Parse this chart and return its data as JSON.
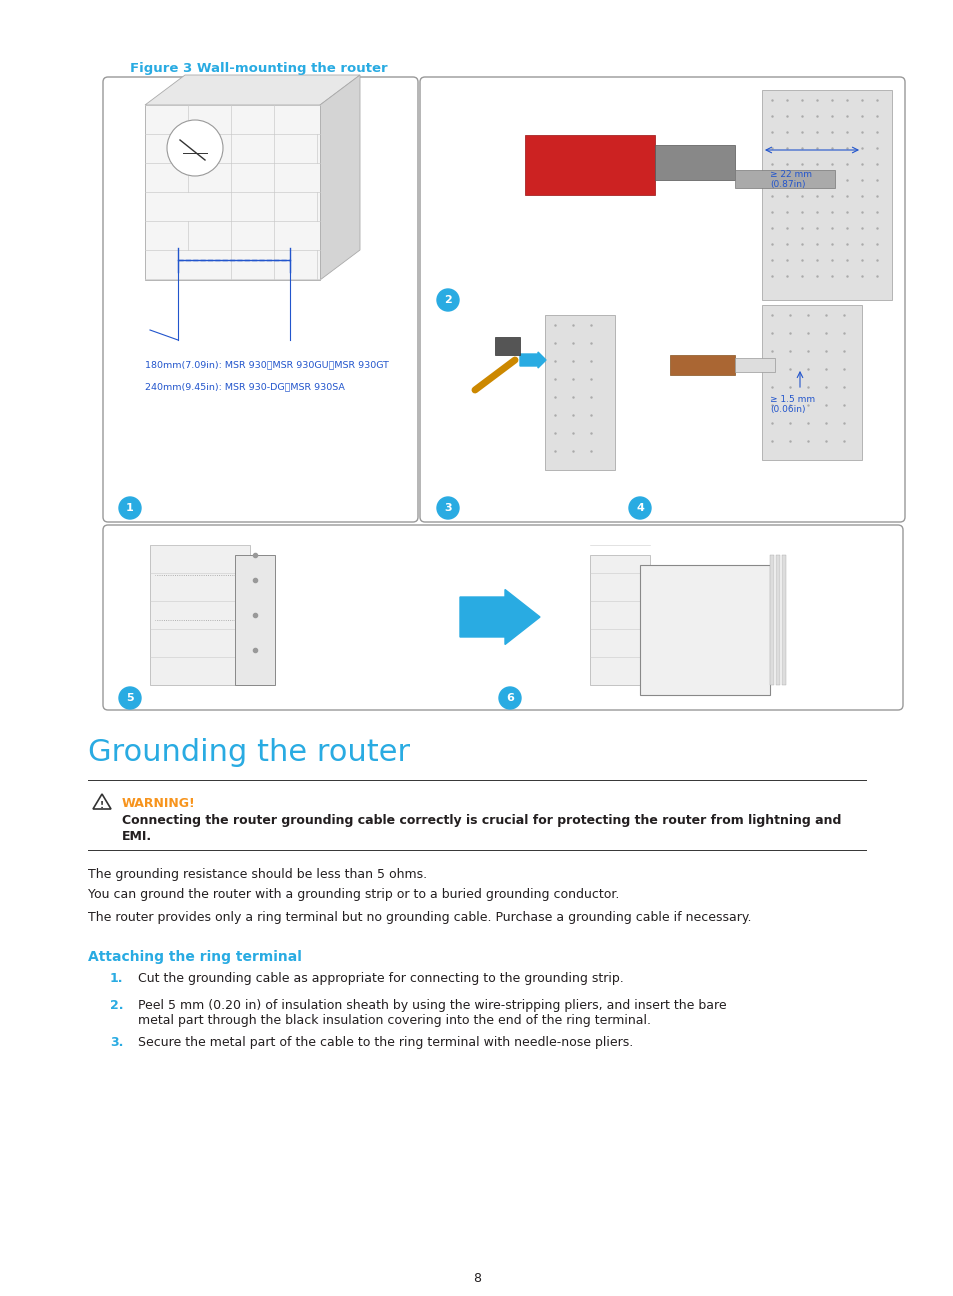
{
  "figure_caption": "Figure 3 Wall-mounting the router",
  "figure_caption_color": "#29ABE2",
  "section_title": "Grounding the router",
  "section_title_color": "#29ABE2",
  "warning_label": "WARNING!",
  "warning_label_color": "#F7941D",
  "warning_text_line1": "Connecting the router grounding cable correctly is crucial for protecting the router from lightning and",
  "warning_text_line2": "EMI.",
  "body_paragraphs": [
    "The grounding resistance should be less than 5 ohms.",
    "You can ground the router with a grounding strip or to a buried grounding conductor.",
    "The router provides only a ring terminal but no grounding cable. Purchase a grounding cable if necessary."
  ],
  "subsection_title": "Attaching the ring terminal",
  "subsection_title_color": "#29ABE2",
  "list_items": [
    [
      "Cut the grounding cable as appropriate for connecting to the grounding strip."
    ],
    [
      "Peel 5 mm (0.20 in) of insulation sheath by using the wire-stripping pliers, and insert the bare",
      "metal part through the black insulation covering into the end of the ring terminal."
    ],
    [
      "Secure the metal part of the cable to the ring terminal with needle-nose pliers."
    ]
  ],
  "list_number_color": "#29ABE2",
  "page_number": "8",
  "background_color": "#ffffff",
  "text_color": "#231F20",
  "box_edge_color": "#999999",
  "cyan_color": "#29ABE2",
  "label1_text": "180mm(7.09in): MSR 930、MSR 930GU、MSR 930GT",
  "label2_text": "240mm(9.45in): MSR 930-DG、MSR 930SA",
  "dim1_text": "≥ 22 mm\n(0.87in)",
  "dim2_text": "≥ 1.5 mm\n(0.06in)"
}
